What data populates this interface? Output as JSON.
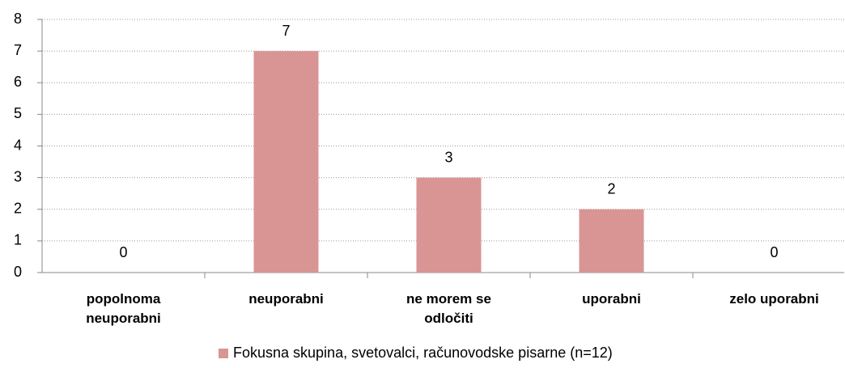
{
  "chart_data": {
    "type": "bar",
    "categories": [
      "popolnoma neuporabni",
      "neuporabni",
      "ne morem se odločiti",
      "uporabni",
      "zelo uporabni"
    ],
    "series": [
      {
        "name": "Fokusna skupina, svetovalci, računovodske pisarne (n=12)",
        "color": "#d99594",
        "values": [
          0,
          7,
          3,
          2,
          0
        ]
      }
    ],
    "ylim": [
      0,
      8
    ],
    "yticks": [
      0,
      1,
      2,
      3,
      4,
      5,
      6,
      7,
      8
    ],
    "grid": true,
    "legend": "bottom"
  }
}
